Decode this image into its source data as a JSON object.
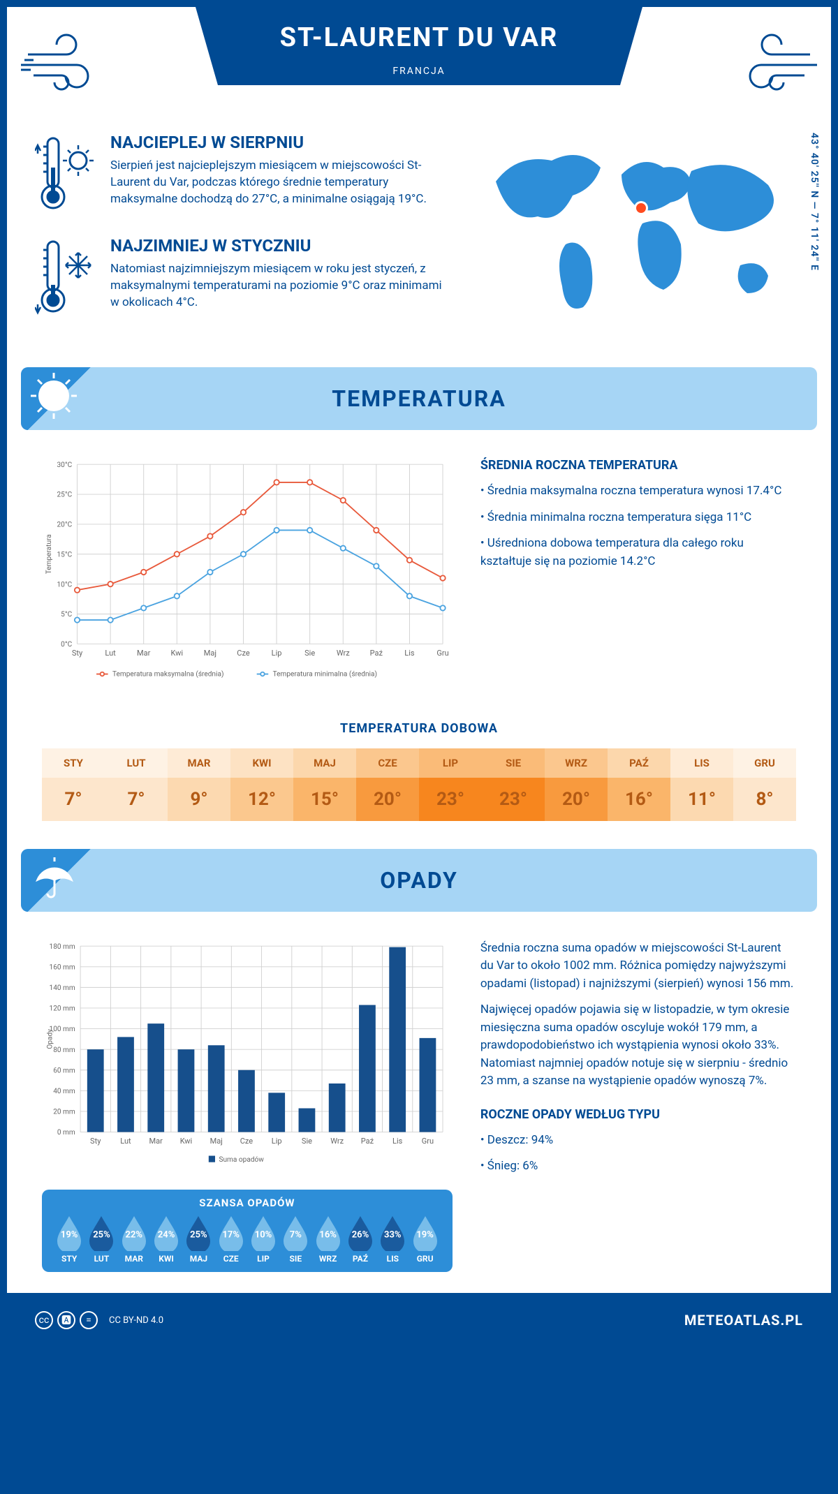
{
  "colors": {
    "primary": "#004a93",
    "light_blue": "#a6d5f5",
    "mid_blue": "#2d8ed8",
    "max_line": "#e8593b",
    "min_line": "#4aa3e0",
    "grid": "#d0d0d0",
    "bar": "#164f8c",
    "drop_light": "#78bdea",
    "drop_dark": "#1a5b9e",
    "marker": "#ff4b1f"
  },
  "header": {
    "title": "ST-LAURENT DU VAR",
    "country": "FRANCJA"
  },
  "coords": "43° 40' 25'' N — 7° 11' 24'' E",
  "warm": {
    "title": "NAJCIEPLEJ W SIERPNIU",
    "text": "Sierpień jest najcieplejszym miesiącem w miejscowości St-Laurent du Var, podczas którego średnie temperatury maksymalne dochodzą do 27°C, a minimalne osiągają 19°C."
  },
  "cold": {
    "title": "NAJZIMNIEJ W STYCZNIU",
    "text": "Natomiast najzimniejszym miesiącem w roku jest styczeń, z maksymalnymi temperaturami na poziomie 9°C oraz minimami w okolicach 4°C."
  },
  "temp_section": {
    "heading": "TEMPERATURA",
    "avg_heading": "ŚREDNIA ROCZNA TEMPERATURA",
    "bullets": [
      "Średnia maksymalna roczna temperatura wynosi 17.4°C",
      "Średnia minimalna roczna temperatura sięga 11°C",
      "Uśredniona dobowa temperatura dla całego roku kształtuje się na poziomie 14.2°C"
    ],
    "daily_heading": "TEMPERATURA DOBOWA"
  },
  "months_full": [
    "Sty",
    "Lut",
    "Mar",
    "Kwi",
    "Maj",
    "Cze",
    "Lip",
    "Sie",
    "Wrz",
    "Paź",
    "Lis",
    "Gru"
  ],
  "months_upper": [
    "STY",
    "LUT",
    "MAR",
    "KWI",
    "MAJ",
    "CZE",
    "LIP",
    "SIE",
    "WRZ",
    "PAŹ",
    "LIS",
    "GRU"
  ],
  "temp_chart": {
    "type": "line",
    "ylabel": "Temperatura",
    "ylim": [
      0,
      30
    ],
    "ytick_step": 5,
    "ytick_suffix": "°C",
    "max_series": [
      9,
      10,
      12,
      15,
      18,
      22,
      27,
      27,
      24,
      19,
      14,
      11
    ],
    "min_series": [
      4,
      4,
      6,
      8,
      12,
      15,
      19,
      19,
      16,
      13,
      8,
      6
    ],
    "legend_max": "Temperatura maksymalna (średnia)",
    "legend_min": "Temperatura minimalna (średnia)",
    "line_width": 2,
    "marker_radius": 4
  },
  "daily_temp": {
    "values": [
      7,
      7,
      9,
      12,
      15,
      20,
      23,
      23,
      20,
      16,
      11,
      8
    ],
    "cell_colors": [
      "#fde6cc",
      "#fde6cc",
      "#fcd9b0",
      "#fbc88e",
      "#fab56a",
      "#f89a3e",
      "#f7861e",
      "#f7861e",
      "#f89a3e",
      "#fab56a",
      "#fcd9b0",
      "#fde6cc"
    ],
    "header_colors": [
      "#fef2e4",
      "#fef2e4",
      "#feebd6",
      "#fde2c3",
      "#fcd7ac",
      "#fbc78e",
      "#fabb78",
      "#fabb78",
      "#fbc78e",
      "#fcd7ac",
      "#feebd6",
      "#fef2e4"
    ],
    "text_color": "#b35a14",
    "suffix": "°"
  },
  "precip_section": {
    "heading": "OPADY",
    "para1": "Średnia roczna suma opadów w miejscowości St-Laurent du Var to około 1002 mm. Różnica pomiędzy najwyższymi opadami (listopad) i najniższymi (sierpień) wynosi 156 mm.",
    "para2": "Najwięcej opadów pojawia się w listopadzie, w tym okresie miesięczna suma opadów oscyluje wokół 179 mm, a prawdopodobieństwo ich wystąpienia wynosi około 33%. Natomiast najmniej opadów notuje się w sierpniu - średnio 23 mm, a szanse na wystąpienie opadów wynoszą 7%.",
    "type_heading": "ROCZNE OPADY WEDŁUG TYPU",
    "types": [
      "Deszcz: 94%",
      "Śnieg: 6%"
    ]
  },
  "precip_chart": {
    "type": "bar",
    "ylabel": "Opady",
    "ylim": [
      0,
      180
    ],
    "ytick_step": 20,
    "ytick_suffix": " mm",
    "values": [
      80,
      92,
      105,
      80,
      84,
      60,
      38,
      23,
      47,
      123,
      179,
      91
    ],
    "legend": "Suma opadów",
    "bar_width": 0.55
  },
  "chance": {
    "heading": "SZANSA OPADÓW",
    "values": [
      19,
      25,
      22,
      24,
      25,
      17,
      10,
      7,
      16,
      26,
      33,
      19
    ],
    "dark_threshold": 25
  },
  "footer": {
    "license": "CC BY-ND 4.0",
    "site": "METEOATLAS.PL"
  }
}
